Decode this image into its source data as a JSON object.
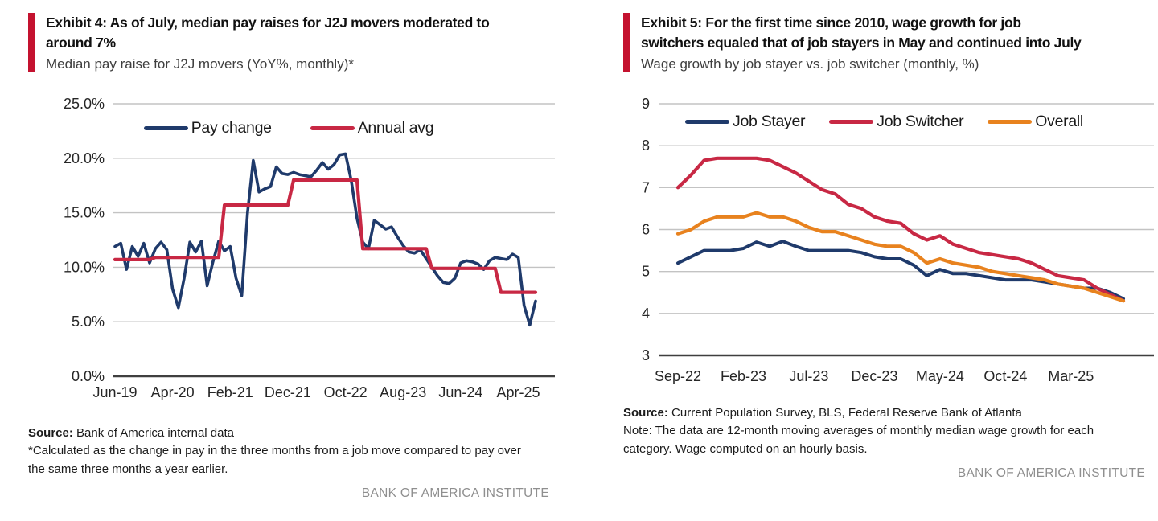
{
  "branding": {
    "accent_bar_color": "#C4122F",
    "institute_label": "BANK OF AMERICA INSTITUTE"
  },
  "left_exhibit": {
    "title_lines": [
      "Exhibit 4: As of July, median pay raises for J2J movers moderated to",
      "around 7%"
    ],
    "subtitle": "Median pay raise for J2J movers (YoY%, monthly)*",
    "source_label": "Source:",
    "source_text": "Bank of America internal data",
    "footnote_lines": [
      "*Calculated as the change in pay in the three months from a job move compared to pay over",
      "the same three months a year earlier."
    ],
    "institute_label": "BANK OF AMERICA INSTITUTE"
  },
  "right_exhibit": {
    "title_lines": [
      "Exhibit 5: For the first time since 2010, wage growth for job",
      "switchers equaled that of job stayers in May and continued into July"
    ],
    "subtitle": "Wage growth by job stayer vs. job switcher (monthly, %)",
    "source_label": "Source:",
    "source_text": "Current Population Survey, BLS, Federal Reserve Bank of Atlanta",
    "note_lines": [
      "Note: The data are 12-month moving averages of monthly median wage growth for each",
      "category. Wage computed on an hourly basis."
    ],
    "institute_label": "BANK OF AMERICA INSTITUTE"
  },
  "chart_data": [
    {
      "type": "line",
      "title": "Median pay raise for J2J movers (YoY%, monthly)*",
      "x_frequency": "monthly",
      "x_start": "Jun-19",
      "x_end": "Jul-25",
      "ylim": [
        0,
        25
      ],
      "grid": "horizontal",
      "legend_position": "top-center",
      "ytick_values": [
        0,
        5,
        10,
        15,
        20,
        25
      ],
      "ytick_labels": [
        "0.0%",
        "5.0%",
        "10.0%",
        "15.0%",
        "20.0%",
        "25.0%"
      ],
      "xtick_indices": [
        0,
        10,
        20,
        30,
        40,
        50,
        60,
        70
      ],
      "xtick_labels": [
        "Jun-19",
        "Apr-20",
        "Feb-21",
        "Dec-21",
        "Oct-22",
        "Aug-23",
        "Jun-24",
        "Apr-25"
      ],
      "series": [
        {
          "name": "Pay change",
          "color": "#1F3A6B",
          "width": 3.6,
          "values": [
            11.9,
            12.2,
            9.8,
            11.9,
            11.0,
            12.2,
            10.4,
            11.7,
            12.3,
            11.6,
            8.0,
            6.3,
            9.0,
            12.3,
            11.4,
            12.4,
            8.3,
            10.5,
            12.4,
            11.5,
            11.9,
            9.0,
            7.4,
            15.0,
            19.8,
            16.9,
            17.2,
            17.4,
            19.2,
            18.6,
            18.5,
            18.7,
            18.5,
            18.4,
            18.3,
            18.9,
            19.6,
            19.0,
            19.4,
            20.3,
            20.4,
            18.0,
            14.5,
            12.3,
            11.7,
            14.3,
            13.9,
            13.5,
            13.7,
            12.8,
            12.0,
            11.4,
            11.3,
            11.6,
            10.8,
            10.0,
            9.2,
            8.6,
            8.5,
            9.0,
            10.4,
            10.6,
            10.5,
            10.3,
            9.8,
            10.6,
            10.9,
            10.8,
            10.7,
            11.2,
            10.9,
            6.5,
            4.7,
            6.9
          ]
        },
        {
          "name": "Annual avg",
          "color": "#C82844",
          "width": 4.2,
          "values": [
            10.7,
            10.7,
            10.7,
            10.7,
            10.7,
            10.7,
            10.7,
            10.9,
            10.9,
            10.9,
            10.9,
            10.9,
            10.9,
            10.9,
            10.9,
            10.9,
            10.9,
            10.9,
            10.9,
            15.7,
            15.7,
            15.7,
            15.7,
            15.7,
            15.7,
            15.7,
            15.7,
            15.7,
            15.7,
            15.7,
            15.7,
            18.0,
            18.0,
            18.0,
            18.0,
            18.0,
            18.0,
            18.0,
            18.0,
            18.0,
            18.0,
            18.0,
            18.0,
            11.7,
            11.7,
            11.7,
            11.7,
            11.7,
            11.7,
            11.7,
            11.7,
            11.7,
            11.7,
            11.7,
            11.7,
            9.9,
            9.9,
            9.9,
            9.9,
            9.9,
            9.9,
            9.9,
            9.9,
            9.9,
            9.9,
            9.9,
            9.9,
            7.7,
            7.7,
            7.7,
            7.7,
            7.7,
            7.7,
            7.7
          ]
        }
      ]
    },
    {
      "type": "line",
      "title": "Wage growth by job stayer vs. job switcher (monthly, %)",
      "x_frequency": "monthly",
      "x_start": "Sep-22",
      "x_end": "Jul-25",
      "ylim": [
        3,
        9
      ],
      "grid": "horizontal",
      "legend_position": "top-center",
      "ytick_values": [
        3,
        4,
        5,
        6,
        7,
        8,
        9
      ],
      "ytick_labels": [
        "3",
        "4",
        "5",
        "6",
        "7",
        "8",
        "9"
      ],
      "xtick_indices": [
        0,
        5,
        10,
        15,
        20,
        25,
        30
      ],
      "xtick_labels": [
        "Sep-22",
        "Feb-23",
        "Jul-23",
        "Dec-23",
        "May-24",
        "Oct-24",
        "Mar-25"
      ],
      "series": [
        {
          "name": "Job Stayer",
          "color": "#1F3A6B",
          "width": 4,
          "values": [
            5.2,
            5.35,
            5.5,
            5.5,
            5.5,
            5.55,
            5.7,
            5.6,
            5.72,
            5.6,
            5.5,
            5.5,
            5.5,
            5.5,
            5.45,
            5.35,
            5.3,
            5.3,
            5.15,
            4.9,
            5.05,
            4.95,
            4.95,
            4.9,
            4.85,
            4.8,
            4.8,
            4.8,
            4.75,
            4.7,
            4.65,
            4.6,
            4.6,
            4.5,
            4.35
          ]
        },
        {
          "name": "Job Switcher",
          "color": "#C82844",
          "width": 4.2,
          "values": [
            7.0,
            7.3,
            7.65,
            7.7,
            7.7,
            7.7,
            7.7,
            7.65,
            7.5,
            7.35,
            7.15,
            6.95,
            6.85,
            6.6,
            6.5,
            6.3,
            6.2,
            6.15,
            5.9,
            5.75,
            5.85,
            5.65,
            5.55,
            5.45,
            5.4,
            5.35,
            5.3,
            5.2,
            5.05,
            4.9,
            4.85,
            4.8,
            4.6,
            4.45,
            4.3
          ]
        },
        {
          "name": "Overall",
          "color": "#E8821E",
          "width": 4.2,
          "values": [
            5.9,
            6.0,
            6.2,
            6.3,
            6.3,
            6.3,
            6.4,
            6.3,
            6.3,
            6.2,
            6.05,
            5.95,
            5.95,
            5.85,
            5.75,
            5.65,
            5.6,
            5.6,
            5.45,
            5.2,
            5.3,
            5.2,
            5.15,
            5.1,
            5.0,
            4.95,
            4.9,
            4.85,
            4.8,
            4.7,
            4.65,
            4.6,
            4.5,
            4.4,
            4.3
          ]
        }
      ]
    }
  ]
}
